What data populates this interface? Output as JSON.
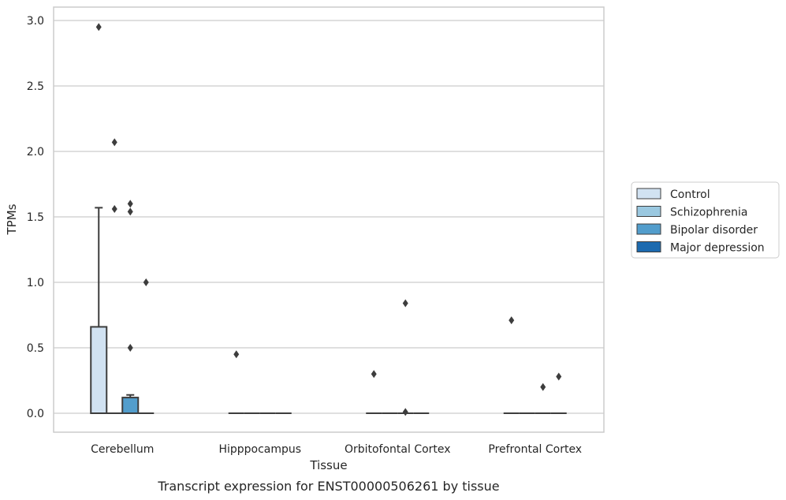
{
  "chart_data": {
    "type": "boxplot",
    "xlabel": "Tissue",
    "ylabel": "TPMs",
    "caption": "Transcript expression for ENST00000506261 by tissue",
    "ylim": [
      -0.14,
      3.1
    ],
    "yticks": [
      "0.0",
      "0.5",
      "1.0",
      "1.5",
      "2.0",
      "2.5",
      "3.0"
    ],
    "ytick_values": [
      0,
      0.5,
      1.0,
      1.5,
      2.0,
      2.5,
      3.0
    ],
    "grid": true,
    "legend_position": "right",
    "categories": [
      "Cerebellum",
      "Hipppocampus",
      "Orbitofontal Cortex",
      "Prefrontal Cortex"
    ],
    "series": [
      {
        "name": "Control",
        "color": "#d1e2f2",
        "boxes": [
          {
            "q1": 0.0,
            "median": 0.0,
            "q3": 0.66,
            "whisker_low": 0.0,
            "whisker_high": 1.57,
            "outliers": [
              2.95
            ]
          },
          {
            "q1": 0.0,
            "median": 0.0,
            "q3": 0.0,
            "whisker_low": 0.0,
            "whisker_high": 0.0,
            "outliers": [
              0.45
            ]
          },
          {
            "q1": 0.0,
            "median": 0.0,
            "q3": 0.0,
            "whisker_low": 0.0,
            "whisker_high": 0.0,
            "outliers": [
              0.3
            ]
          },
          {
            "q1": 0.0,
            "median": 0.0,
            "q3": 0.0,
            "whisker_low": 0.0,
            "whisker_high": 0.0,
            "outliers": [
              0.71
            ]
          }
        ]
      },
      {
        "name": "Schizophrenia",
        "color": "#9ac8e0",
        "boxes": [
          {
            "q1": 0.0,
            "median": 0.0,
            "q3": 0.0,
            "whisker_low": 0.0,
            "whisker_high": 0.0,
            "outliers": [
              2.07,
              1.56
            ]
          },
          {
            "q1": 0.0,
            "median": 0.0,
            "q3": 0.0,
            "whisker_low": 0.0,
            "whisker_high": 0.0,
            "outliers": []
          },
          {
            "q1": 0.0,
            "median": 0.0,
            "q3": 0.0,
            "whisker_low": 0.0,
            "whisker_high": 0.0,
            "outliers": []
          },
          {
            "q1": 0.0,
            "median": 0.0,
            "q3": 0.0,
            "whisker_low": 0.0,
            "whisker_high": 0.0,
            "outliers": []
          }
        ]
      },
      {
        "name": "Bipolar disorder",
        "color": "#529dcc",
        "boxes": [
          {
            "q1": 0.0,
            "median": 0.0,
            "q3": 0.12,
            "whisker_low": 0.0,
            "whisker_high": 0.14,
            "outliers": [
              1.6,
              1.54,
              0.5
            ]
          },
          {
            "q1": 0.0,
            "median": 0.0,
            "q3": 0.0,
            "whisker_low": 0.0,
            "whisker_high": 0.0,
            "outliers": []
          },
          {
            "q1": 0.0,
            "median": 0.0,
            "q3": 0.0,
            "whisker_low": 0.0,
            "whisker_high": 0.0,
            "outliers": [
              0.84,
              0.01
            ]
          },
          {
            "q1": 0.0,
            "median": 0.0,
            "q3": 0.0,
            "whisker_low": 0.0,
            "whisker_high": 0.0,
            "outliers": [
              0.2
            ]
          }
        ]
      },
      {
        "name": "Major depression",
        "color": "#1c6aaf",
        "boxes": [
          {
            "q1": 0.0,
            "median": 0.0,
            "q3": 0.0,
            "whisker_low": 0.0,
            "whisker_high": 0.0,
            "outliers": [
              1.0
            ]
          },
          {
            "q1": 0.0,
            "median": 0.0,
            "q3": 0.0,
            "whisker_low": 0.0,
            "whisker_high": 0.0,
            "outliers": []
          },
          {
            "q1": 0.0,
            "median": 0.0,
            "q3": 0.0,
            "whisker_low": 0.0,
            "whisker_high": 0.0,
            "outliers": []
          },
          {
            "q1": 0.0,
            "median": 0.0,
            "q3": 0.0,
            "whisker_low": 0.0,
            "whisker_high": 0.0,
            "outliers": [
              0.28
            ]
          }
        ]
      }
    ]
  }
}
